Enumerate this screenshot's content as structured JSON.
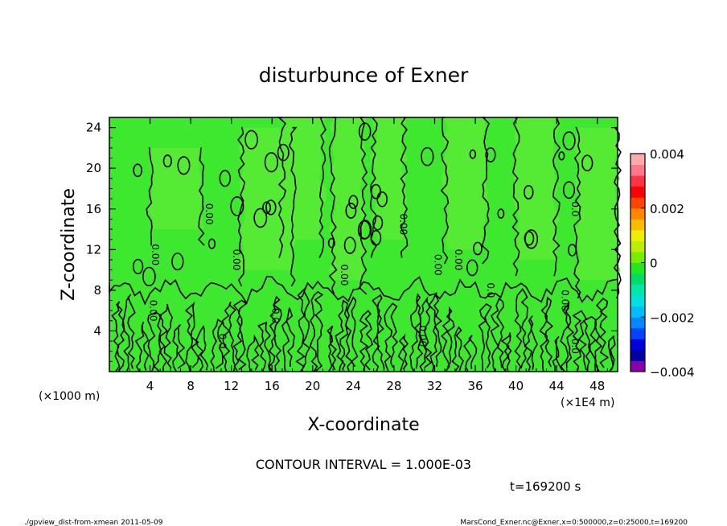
{
  "chart_data": {
    "type": "heatmap",
    "title": "disturbunce of Exner",
    "xlabel": "X-coordinate",
    "ylabel": "Z-coordinate",
    "x_unit_left": "(×1000 m)",
    "x_unit_right": "(×1E4 m)",
    "x_ticks": [
      4,
      8,
      12,
      16,
      20,
      24,
      28,
      32,
      36,
      40,
      44,
      48
    ],
    "y_ticks": [
      4,
      8,
      12,
      16,
      20,
      24
    ],
    "xlim": [
      0,
      50
    ],
    "ylim": [
      0,
      25
    ],
    "contour_interval_text": "CONTOUR INTERVAL = 1.000E-03",
    "time_text": "t=169200 s",
    "contour_labels": [
      {
        "x": 4.2,
        "y": 11.5,
        "text": "0.00"
      },
      {
        "x": 9.5,
        "y": 15.5,
        "text": "0.00"
      },
      {
        "x": 4.0,
        "y": 6.0,
        "text": "0.00"
      },
      {
        "x": 12.2,
        "y": 11.0,
        "text": "0.00"
      },
      {
        "x": 10.8,
        "y": 3.0,
        "text": "0.0"
      },
      {
        "x": 22.8,
        "y": 9.5,
        "text": "0.00"
      },
      {
        "x": 28.6,
        "y": 14.5,
        "text": "0.00"
      },
      {
        "x": 32.0,
        "y": 10.5,
        "text": "0.00"
      },
      {
        "x": 34.0,
        "y": 11.0,
        "text": "0.00"
      },
      {
        "x": 30.5,
        "y": 3.5,
        "text": "0.00"
      },
      {
        "x": 37.2,
        "y": 8.0,
        "text": "0.0"
      },
      {
        "x": 44.5,
        "y": 7.0,
        "text": "0.00"
      },
      {
        "x": 45.5,
        "y": 16.0,
        "text": "0.0"
      },
      {
        "x": 45.5,
        "y": 2.5,
        "text": "0.0"
      },
      {
        "x": 16.0,
        "y": 5.5,
        "text": "0.0"
      }
    ],
    "colorbar": {
      "min": -0.004,
      "max": 0.004,
      "tick_values": [
        0.004,
        0.002,
        0,
        -0.002,
        -0.004
      ],
      "tick_labels": [
        "0.004",
        "0.002",
        "0",
        "−0.002",
        "−0.004"
      ],
      "colors": [
        "#8800aa",
        "#0000a0",
        "#0000dd",
        "#0044ff",
        "#0088ff",
        "#00bbff",
        "#00e0e0",
        "#00e8a8",
        "#00dd66",
        "#22e822",
        "#77ee00",
        "#bbee00",
        "#eeee00",
        "#ffbb00",
        "#ff8800",
        "#ff4400",
        "#ff0000",
        "#ff3344",
        "#ff7788",
        "#ffaaaa"
      ]
    },
    "grid": false,
    "legend": "right"
  },
  "footer": {
    "left": "./gpview_dist-from-xmean  2011-05-09",
    "right": "MarsCond_Exner.nc@Exner,x=0:500000,z=0:25000,t=169200"
  }
}
